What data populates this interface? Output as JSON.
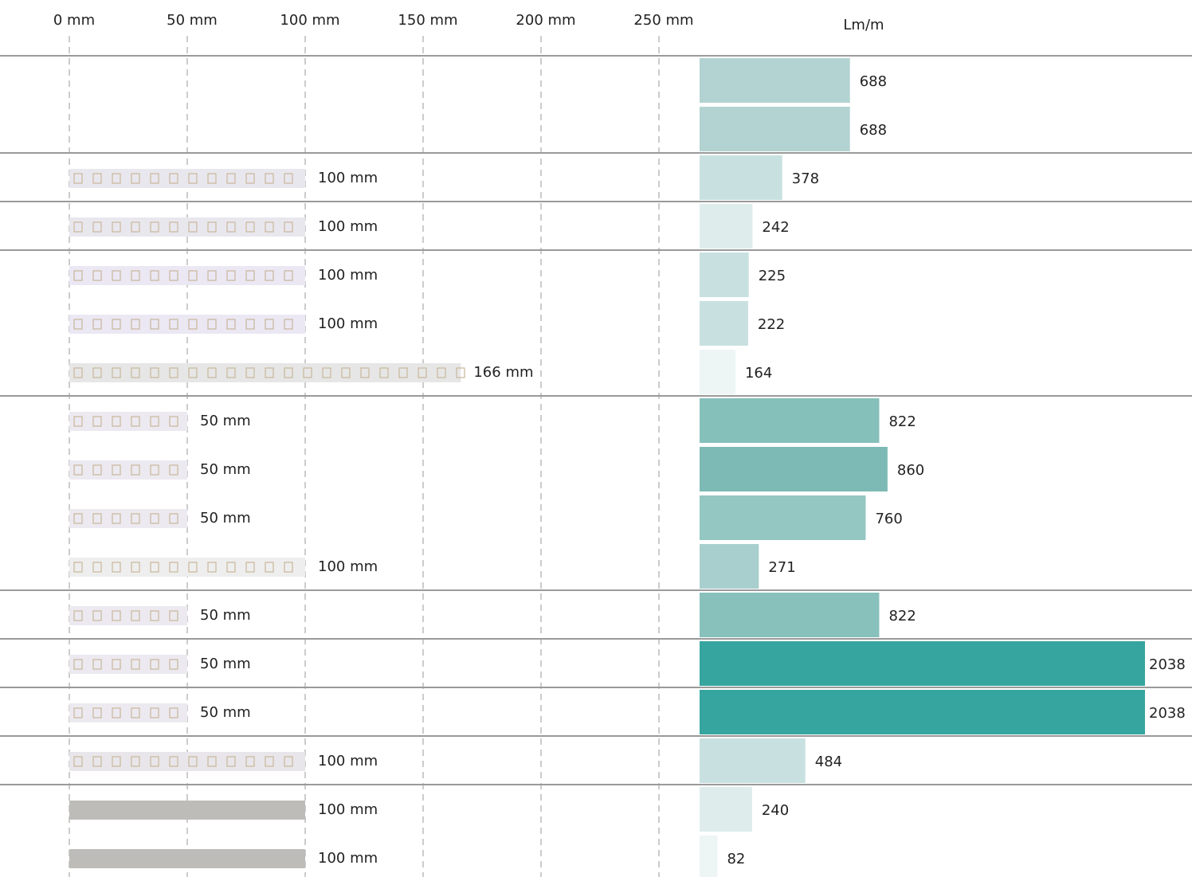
{
  "ruler": {
    "ticks": [
      {
        "value": 0,
        "label": "0 mm"
      },
      {
        "value": 50,
        "label": "50 mm"
      },
      {
        "value": 100,
        "label": "100 mm"
      },
      {
        "value": 150,
        "label": "150 mm"
      },
      {
        "value": 200,
        "label": "200 mm"
      },
      {
        "value": 250,
        "label": "250 mm"
      }
    ]
  },
  "lumen_header": "Lm/m",
  "groups": [
    [
      {
        "lm": 688,
        "color": "#b2d3d2"
      },
      {
        "lm": 688,
        "color": "#b2d3d2"
      }
    ],
    [
      {
        "cut": {
          "value": 100,
          "label": "100 mm"
        },
        "lm": 378,
        "color": "#c8e0e0",
        "strip_color": "#e9e7ee"
      }
    ],
    [
      {
        "cut": {
          "value": 100,
          "label": "100 mm"
        },
        "lm": 242,
        "color": "#deecec",
        "strip_color": "#e9e7ee"
      }
    ],
    [
      {
        "cut": {
          "value": 100,
          "label": "100 mm"
        },
        "lm": 225,
        "color": "#c8e0e0",
        "strip_color": "#ebe8f4"
      },
      {
        "cut": {
          "value": 100,
          "label": "100 mm"
        },
        "lm": 222,
        "color": "#c8e0e0",
        "strip_color": "#ebe8f4"
      },
      {
        "cut": {
          "value": 166,
          "label": "166 mm"
        },
        "lm": 164,
        "color": "#eef5f5",
        "strip_color": "#e6e6e6"
      }
    ],
    [
      {
        "cut": {
          "value": 50,
          "label": "50 mm"
        },
        "lm": 822,
        "color": "#86c0bb",
        "strip_color": "#ece9f0"
      },
      {
        "cut": {
          "value": 50,
          "label": "50 mm"
        },
        "lm": 860,
        "color": "#7dbab5",
        "strip_color": "#ece9f0"
      },
      {
        "cut": {
          "value": 50,
          "label": "50 mm"
        },
        "lm": 760,
        "color": "#94c6c2",
        "strip_color": "#ece9f0"
      },
      {
        "cut": {
          "value": 100,
          "label": "100 mm"
        },
        "lm": 271,
        "color": "#a8cfcd",
        "strip_color": "#eeeeee"
      }
    ],
    [
      {
        "cut": {
          "value": 50,
          "label": "50 mm"
        },
        "lm": 822,
        "color": "#88c1bc",
        "strip_color": "#ece9f0"
      }
    ],
    [
      {
        "cut": {
          "value": 50,
          "label": "50 mm"
        },
        "lm": 2038,
        "color": "#37a59f",
        "strip_color": "#ece9f0"
      }
    ],
    [
      {
        "cut": {
          "value": 50,
          "label": "50 mm"
        },
        "lm": 2038,
        "color": "#37a59f",
        "strip_color": "#ece9f0"
      }
    ],
    [
      {
        "cut": {
          "value": 100,
          "label": "100 mm"
        },
        "lm": 484,
        "color": "#c8e0e0",
        "strip_color": "#e8e6ea"
      }
    ],
    [
      {
        "cut": {
          "value": 100,
          "label": "100 mm"
        },
        "lm": 240,
        "color": "#deecec",
        "strip_color": "#bdbcb8"
      },
      {
        "cut": {
          "value": 100,
          "label": "100 mm"
        },
        "lm": 82,
        "color": "#eef5f5",
        "strip_color": "#bdbcb8"
      }
    ]
  ]
}
